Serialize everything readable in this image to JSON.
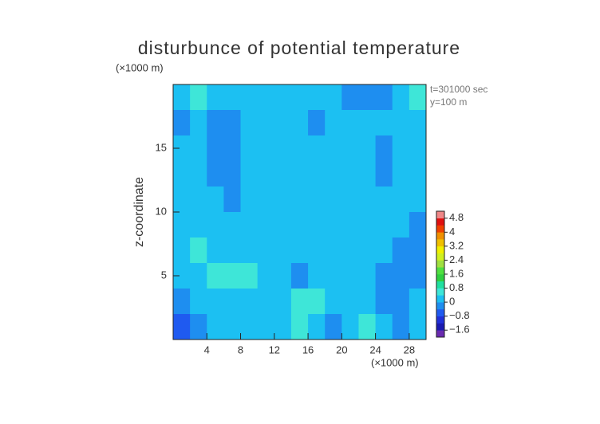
{
  "chart_data": {
    "type": "contour",
    "title": "disturbunce of potential temperature",
    "y_unit": "(×1000 m)",
    "x_unit": "(×1000 m)",
    "ylabel": "z-coordinate",
    "annotations": [
      "t=301000 sec",
      "y=100 m"
    ],
    "xlim": [
      0,
      30
    ],
    "ylim": [
      0,
      20
    ],
    "xticks": [
      4,
      8,
      12,
      16,
      20,
      24,
      28
    ],
    "yticks": [
      5,
      10,
      15
    ],
    "x": [
      1,
      3,
      5,
      7,
      9,
      11,
      13,
      15,
      17,
      19,
      21,
      23,
      25,
      27,
      29
    ],
    "y": [
      19,
      17,
      15,
      13,
      11,
      9,
      7,
      5,
      3,
      1
    ],
    "values": [
      [
        0.1,
        0.5,
        0.3,
        0.1,
        0.2,
        0.1,
        0.2,
        0.2,
        0.1,
        0.0,
        -0.1,
        -0.3,
        -0.2,
        0.1,
        0.5
      ],
      [
        -0.1,
        0.1,
        -0.2,
        -0.3,
        0.1,
        0.2,
        0.3,
        0.1,
        -0.1,
        0.2,
        0.2,
        0.1,
        0.1,
        0.2,
        0.1
      ],
      [
        0.2,
        0.1,
        -0.2,
        -0.3,
        0.1,
        0.2,
        0.3,
        0.2,
        0.1,
        0.2,
        0.1,
        0.0,
        -0.2,
        0.1,
        0.2
      ],
      [
        0.1,
        0.1,
        -0.1,
        -0.3,
        0.0,
        0.2,
        0.1,
        0.2,
        0.2,
        0.1,
        0.2,
        0.0,
        -0.2,
        0.1,
        0.2
      ],
      [
        0.1,
        0.2,
        0.1,
        -0.2,
        0.1,
        0.2,
        0.2,
        0.1,
        0.2,
        0.1,
        0.2,
        0.2,
        0.1,
        0.2,
        0.1
      ],
      [
        0.2,
        0.3,
        0.1,
        0.2,
        0.1,
        0.1,
        0.2,
        0.2,
        0.3,
        0.2,
        0.1,
        0.2,
        0.2,
        0.1,
        -0.1
      ],
      [
        0.1,
        0.4,
        0.3,
        0.1,
        0.2,
        0.1,
        0.2,
        0.3,
        0.2,
        0.0,
        0.2,
        0.3,
        0.1,
        -0.2,
        -0.4
      ],
      [
        0.3,
        0.1,
        0.4,
        0.6,
        0.5,
        0.3,
        0.0,
        -0.2,
        0.1,
        0.3,
        0.2,
        0.0,
        -0.2,
        -0.3,
        -0.1
      ],
      [
        -0.2,
        0.2,
        0.1,
        0.3,
        0.1,
        0.2,
        0.3,
        0.5,
        0.6,
        0.3,
        0.2,
        0.1,
        -0.2,
        -0.1,
        0.0
      ],
      [
        -0.5,
        -0.3,
        0.1,
        0.2,
        0.1,
        0.2,
        0.2,
        0.5,
        0.3,
        -0.2,
        0.2,
        0.4,
        0.1,
        -0.3,
        0.1
      ]
    ],
    "levels": [
      -2.0,
      -1.6,
      -1.2,
      -0.8,
      -0.4,
      0,
      0.4,
      0.8,
      1.2,
      1.6,
      2.0,
      2.4,
      2.8,
      3.2,
      3.6,
      4.0,
      4.4,
      4.8,
      5.2
    ],
    "colors": [
      "#6a2bb0",
      "#1a1ab0",
      "#2030d8",
      "#1f5af0",
      "#1e8ef0",
      "#1cc0f2",
      "#3ee6d8",
      "#20e0a0",
      "#30d040",
      "#50e040",
      "#a0e040",
      "#d0f020",
      "#f0f000",
      "#f0c000",
      "#f09000",
      "#f04000",
      "#e01010",
      "#f08888"
    ],
    "colorbar_ticks": [
      {
        "value": -1.6,
        "label": "−1.6"
      },
      {
        "value": -0.8,
        "label": "−0.8"
      },
      0,
      0.8,
      1.6,
      2.4,
      3.2,
      4,
      4.8
    ]
  }
}
